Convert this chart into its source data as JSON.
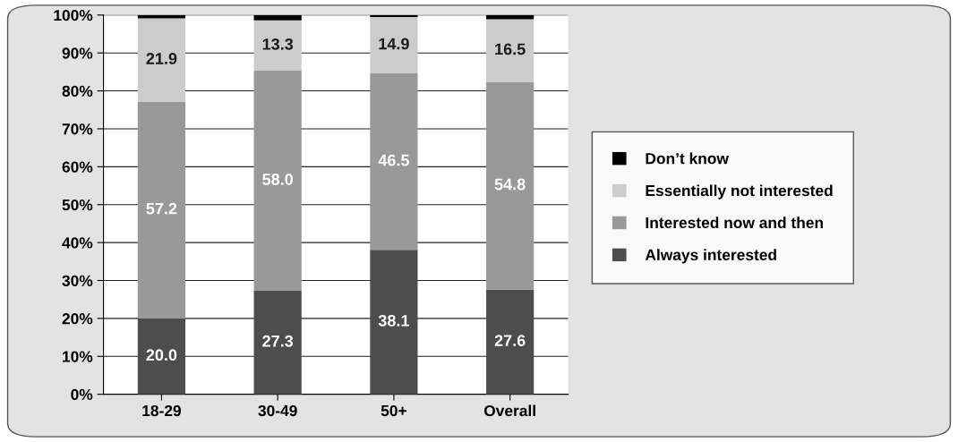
{
  "chart_data": {
    "type": "bar",
    "stacked": true,
    "categories": [
      "18-29",
      "30-49",
      "50+",
      "Overall"
    ],
    "series": [
      {
        "name": "Always interested",
        "color": "#4d4d4d",
        "values": [
          20.0,
          27.3,
          38.1,
          27.6
        ],
        "value_labels": [
          "20.0",
          "27.3",
          "38.1",
          "27.6"
        ]
      },
      {
        "name": "Interested now and then",
        "color": "#999999",
        "values": [
          57.2,
          58.0,
          46.5,
          54.8
        ],
        "value_labels": [
          "57.2",
          "58.0",
          "46.5",
          "54.8"
        ]
      },
      {
        "name": "Essentially not interested",
        "color": "#cccccc",
        "values": [
          21.9,
          13.3,
          14.9,
          16.5
        ],
        "value_labels": [
          "21.9",
          "13.3",
          "14.9",
          "16.5"
        ]
      },
      {
        "name": "Don’t know",
        "color": "#000000",
        "values": [
          0.9,
          1.4,
          0.5,
          1.1
        ]
      }
    ],
    "ylim": [
      0,
      100
    ],
    "yticks": [
      {
        "value": 0,
        "label": "0%"
      },
      {
        "value": 10,
        "label": "10%"
      },
      {
        "value": 20,
        "label": "20%"
      },
      {
        "value": 30,
        "label": "30%"
      },
      {
        "value": 40,
        "label": "40%"
      },
      {
        "value": 50,
        "label": "50%"
      },
      {
        "value": 60,
        "label": "60%"
      },
      {
        "value": 70,
        "label": "70%"
      },
      {
        "value": 80,
        "label": "80%"
      },
      {
        "value": 90,
        "label": "90%"
      },
      {
        "value": 100,
        "label": "100%"
      }
    ],
    "grid": "y",
    "legend": "right"
  }
}
